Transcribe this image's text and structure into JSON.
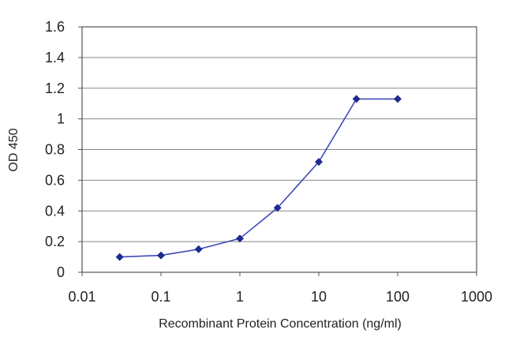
{
  "chart_data": {
    "type": "line",
    "xscale": "log",
    "xlabel": "Recombinant Protein Concentration (ng/ml)",
    "ylabel": "OD 450",
    "xlim": [
      0.01,
      1000
    ],
    "ylim": [
      0,
      1.6
    ],
    "x_ticks": [
      0.01,
      0.1,
      1,
      10,
      100,
      1000
    ],
    "x_tick_labels": [
      "0.01",
      "0.1",
      "1",
      "10",
      "100",
      "1000"
    ],
    "y_ticks": [
      0,
      0.2,
      0.4,
      0.6,
      0.8,
      1,
      1.2,
      1.4,
      1.6
    ],
    "y_tick_labels": [
      "0",
      "0.2",
      "0.4",
      "0.6",
      "0.8",
      "1",
      "1.2",
      "1.4",
      "1.6"
    ],
    "grid": "horizontal",
    "legend": "none",
    "series": [
      {
        "color": "#2b35a8",
        "x": [
          0.03,
          0.1,
          0.3,
          1,
          3,
          10,
          30,
          100
        ],
        "y": [
          0.1,
          0.11,
          0.15,
          0.22,
          0.42,
          0.72,
          1.13,
          1.13
        ]
      }
    ],
    "colors": {
      "line": "#3f4bb8",
      "marker": "#1f2a8f",
      "grid": "#888888",
      "axis": "#555555"
    }
  }
}
